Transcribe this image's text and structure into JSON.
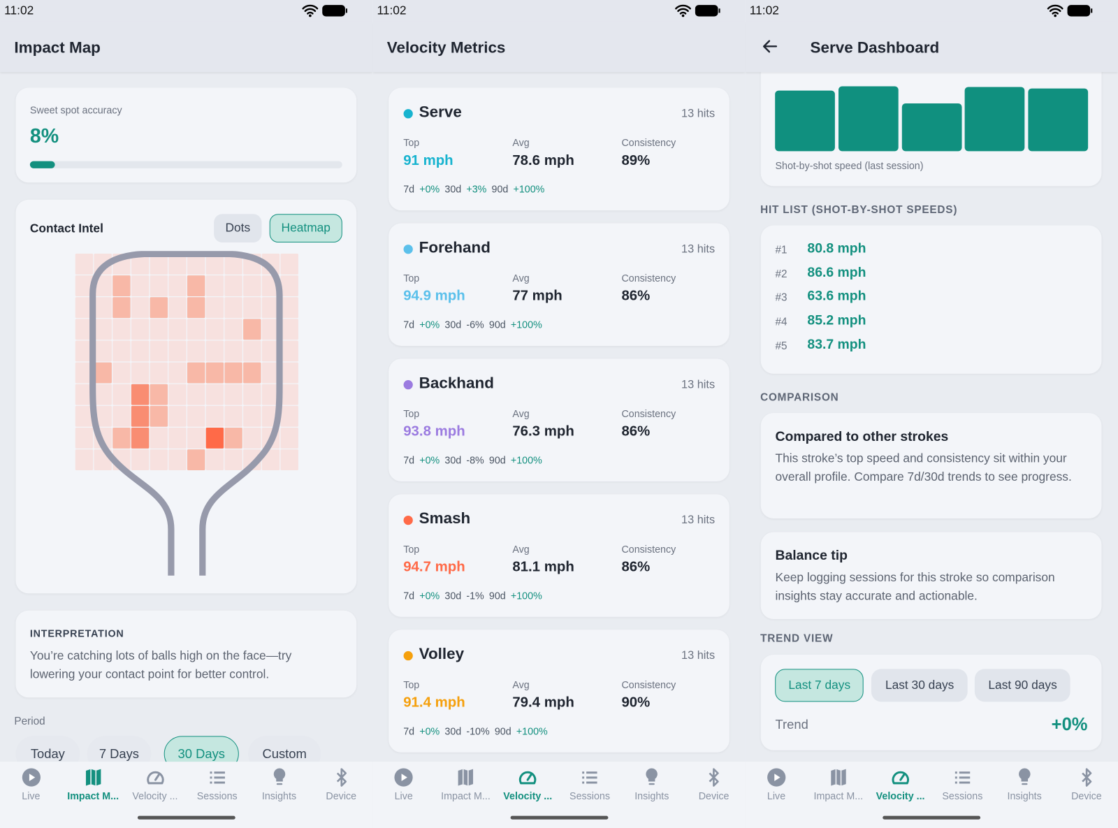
{
  "status": {
    "time": "11:02"
  },
  "colors": {
    "accent": "#13907f",
    "serve": "#17b3cf",
    "forehand": "#5bc0eb",
    "backhand": "#9b7be0",
    "smash": "#ff6a48",
    "volley": "#f5a00d"
  },
  "nav": [
    {
      "label": "Live",
      "icon": "play-circle-icon"
    },
    {
      "label": "Impact M...",
      "icon": "map-icon"
    },
    {
      "label": "Velocity ...",
      "icon": "gauge-icon"
    },
    {
      "label": "Sessions",
      "icon": "list-icon"
    },
    {
      "label": "Insights",
      "icon": "lightbulb-icon"
    },
    {
      "label": "Device",
      "icon": "bluetooth-icon"
    }
  ],
  "impact": {
    "title": "Impact Map",
    "active_nav": 1,
    "sweet_spot": {
      "label": "Sweet spot accuracy",
      "value": "8%",
      "progress": 0.08
    },
    "contact": {
      "title": "Contact Intel",
      "toggle": [
        {
          "label": "Dots",
          "selected": false
        },
        {
          "label": "Heatmap",
          "selected": true
        }
      ],
      "heatmap_levels": [
        [
          0,
          0,
          0,
          0,
          0,
          0,
          0,
          0,
          0,
          0,
          0,
          0
        ],
        [
          0,
          0,
          1,
          0,
          0,
          0,
          1,
          0,
          0,
          0,
          0,
          0
        ],
        [
          0,
          0,
          1,
          0,
          1,
          0,
          1,
          0,
          0,
          0,
          0,
          0
        ],
        [
          0,
          0,
          0,
          0,
          0,
          0,
          0,
          0,
          0,
          1,
          0,
          0
        ],
        [
          0,
          0,
          0,
          0,
          0,
          0,
          0,
          0,
          0,
          0,
          0,
          0
        ],
        [
          0,
          1,
          0,
          0,
          0,
          0,
          1,
          1,
          1,
          1,
          0,
          0
        ],
        [
          0,
          0,
          0,
          2,
          1,
          0,
          0,
          0,
          0,
          0,
          0,
          0
        ],
        [
          0,
          0,
          0,
          2,
          1,
          0,
          0,
          0,
          0,
          0,
          0,
          0
        ],
        [
          0,
          0,
          1,
          2,
          0,
          0,
          0,
          3,
          1,
          0,
          0,
          0
        ],
        [
          0,
          0,
          0,
          0,
          0,
          0,
          1,
          0,
          0,
          0,
          0,
          0
        ]
      ]
    },
    "interpretation": {
      "heading": "INTERPRETATION",
      "text": "You’re catching lots of balls high on the face—try lowering your contact point for better control."
    },
    "period": {
      "label": "Period",
      "options": [
        {
          "label": "Today"
        },
        {
          "label": "7 Days"
        },
        {
          "label": "30 Days",
          "selected": true
        },
        {
          "label": "Custom"
        }
      ]
    }
  },
  "velocity": {
    "title": "Velocity Metrics",
    "active_nav": 2,
    "labels": {
      "top": "Top",
      "avg": "Avg",
      "consistency": "Consistency",
      "d7": "7d",
      "d30": "30d",
      "d90": "90d"
    },
    "strokes": [
      {
        "name": "Serve",
        "color": "#17b3cf",
        "hits": "13 hits",
        "top": "91 mph",
        "avg": "78.6 mph",
        "consistency": "89%",
        "t7": "+0%",
        "t30": "+3%",
        "t90": "+100%"
      },
      {
        "name": "Forehand",
        "color": "#5bc0eb",
        "hits": "13 hits",
        "top": "94.9 mph",
        "avg": "77 mph",
        "consistency": "86%",
        "t7": "+0%",
        "t30": "-6%",
        "t90": "+100%"
      },
      {
        "name": "Backhand",
        "color": "#9b7be0",
        "hits": "13 hits",
        "top": "93.8 mph",
        "avg": "76.3 mph",
        "consistency": "86%",
        "t7": "+0%",
        "t30": "-8%",
        "t90": "+100%"
      },
      {
        "name": "Smash",
        "color": "#ff6a48",
        "hits": "13 hits",
        "top": "94.7 mph",
        "avg": "81.1 mph",
        "consistency": "86%",
        "t7": "+0%",
        "t30": "-1%",
        "t90": "+100%"
      },
      {
        "name": "Volley",
        "color": "#f5a00d",
        "hits": "13 hits",
        "top": "91.4 mph",
        "avg": "79.4 mph",
        "consistency": "90%",
        "t7": "+0%",
        "t30": "-10%",
        "t90": "+100%"
      }
    ]
  },
  "serve": {
    "title": "Serve Dashboard",
    "active_nav": 2,
    "chart_caption": "Shot-by-shot speed (last session)",
    "hit_list_heading": "HIT LIST (SHOT-BY-SHOT SPEEDS)",
    "hits": [
      {
        "rank": "#1",
        "speed": "80.8 mph",
        "value": 80.8
      },
      {
        "rank": "#2",
        "speed": "86.6 mph",
        "value": 86.6
      },
      {
        "rank": "#3",
        "speed": "63.6 mph",
        "value": 63.6
      },
      {
        "rank": "#4",
        "speed": "85.2 mph",
        "value": 85.2
      },
      {
        "rank": "#5",
        "speed": "83.7 mph",
        "value": 83.7
      }
    ],
    "comparison_heading": "COMPARISON",
    "compare": {
      "title": "Compared to other strokes",
      "text": "This stroke’s top speed and consistency sit within your overall profile. Compare 7d/30d trends to see progress."
    },
    "tip": {
      "title": "Balance tip",
      "text": "Keep logging sessions for this stroke so comparison insights stay accurate and actionable."
    },
    "trend_heading": "TREND VIEW",
    "trend_options": [
      {
        "label": "Last 7 days",
        "selected": true
      },
      {
        "label": "Last 30 days"
      },
      {
        "label": "Last 90 days"
      }
    ],
    "trend_label": "Trend",
    "trend_value": "+0%"
  },
  "chart_data": {
    "type": "bar",
    "title": "",
    "caption": "Shot-by-shot speed (last session)",
    "categories": [
      "#1",
      "#2",
      "#3",
      "#4",
      "#5"
    ],
    "values": [
      80.8,
      86.6,
      63.6,
      85.2,
      83.7
    ],
    "ylim": [
      0,
      86.6
    ]
  }
}
